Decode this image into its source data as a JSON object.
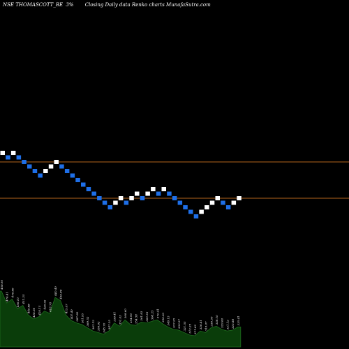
{
  "header": {
    "symbol": "NSE THOMASCOTT_BE",
    "box_size": "3%",
    "description": "Closing Daily data  Renko  charts MunafaSutra.com"
  },
  "colors": {
    "background": "#000000",
    "up_brick": "#ffffff",
    "down_brick": "#1e6fe8",
    "level_line": "#b5651d",
    "volume_fill": "#0a3d0a",
    "volume_edge": "#1f6d1f"
  },
  "chart_data": {
    "type": "renko",
    "box_size_pct": 3,
    "bricks": [
      {
        "level": 0,
        "dir": "up"
      },
      {
        "level": -1,
        "dir": "down"
      },
      {
        "level": 0,
        "dir": "up"
      },
      {
        "level": -1,
        "dir": "down"
      },
      {
        "level": -2,
        "dir": "down"
      },
      {
        "level": -3,
        "dir": "down"
      },
      {
        "level": -4,
        "dir": "down"
      },
      {
        "level": -5,
        "dir": "down"
      },
      {
        "level": -4,
        "dir": "up"
      },
      {
        "level": -3,
        "dir": "up"
      },
      {
        "level": -2,
        "dir": "up"
      },
      {
        "level": -3,
        "dir": "down"
      },
      {
        "level": -4,
        "dir": "down"
      },
      {
        "level": -5,
        "dir": "down"
      },
      {
        "level": -6,
        "dir": "down"
      },
      {
        "level": -7,
        "dir": "down"
      },
      {
        "level": -8,
        "dir": "down"
      },
      {
        "level": -9,
        "dir": "down"
      },
      {
        "level": -10,
        "dir": "down"
      },
      {
        "level": -11,
        "dir": "down"
      },
      {
        "level": -12,
        "dir": "down"
      },
      {
        "level": -11,
        "dir": "up"
      },
      {
        "level": -10,
        "dir": "up"
      },
      {
        "level": -11,
        "dir": "down"
      },
      {
        "level": -10,
        "dir": "up"
      },
      {
        "level": -9,
        "dir": "up"
      },
      {
        "level": -10,
        "dir": "down"
      },
      {
        "level": -9,
        "dir": "up"
      },
      {
        "level": -8,
        "dir": "up"
      },
      {
        "level": -9,
        "dir": "down"
      },
      {
        "level": -8,
        "dir": "up"
      },
      {
        "level": -9,
        "dir": "down"
      },
      {
        "level": -10,
        "dir": "down"
      },
      {
        "level": -11,
        "dir": "down"
      },
      {
        "level": -12,
        "dir": "down"
      },
      {
        "level": -13,
        "dir": "down"
      },
      {
        "level": -14,
        "dir": "down"
      },
      {
        "level": -13,
        "dir": "up"
      },
      {
        "level": -12,
        "dir": "up"
      },
      {
        "level": -11,
        "dir": "up"
      },
      {
        "level": -10,
        "dir": "up"
      },
      {
        "level": -11,
        "dir": "down"
      },
      {
        "level": -12,
        "dir": "down"
      },
      {
        "level": -11,
        "dir": "up"
      },
      {
        "level": -10,
        "dir": "up"
      }
    ],
    "levels_marked": [
      -2,
      -10
    ],
    "volume_labels": [
      "458.90",
      "474.41",
      "476.86",
      "456.10",
      "451.25",
      "440.88",
      "424.06",
      "420.15",
      "426.92",
      "418.78",
      "440.40",
      "436.86",
      "415.07",
      "401.40",
      "387.80",
      "381.95",
      "369.52",
      "361.12",
      "356.62",
      "345.70",
      "347.25",
      "358.41",
      "351.03",
      "368.60",
      "354.90",
      "354.58",
      "361.83",
      "360.56",
      "368.25",
      "370.41",
      "356.03",
      "349.13",
      "337.25",
      "330.97",
      "321.55",
      "312.25",
      "311.62",
      "326.41",
      "319.07",
      "336.50",
      "338.10",
      "329.60",
      "321.12",
      "323.88",
      "335.41"
    ],
    "volume_values": [
      70,
      55,
      60,
      48,
      52,
      40,
      35,
      38,
      45,
      42,
      62,
      58,
      40,
      33,
      30,
      28,
      24,
      20,
      18,
      16,
      20,
      30,
      26,
      34,
      28,
      27,
      31,
      30,
      32,
      34,
      29,
      25,
      22,
      21,
      18,
      15,
      14,
      20,
      18,
      24,
      26,
      22,
      20,
      21,
      25
    ]
  }
}
